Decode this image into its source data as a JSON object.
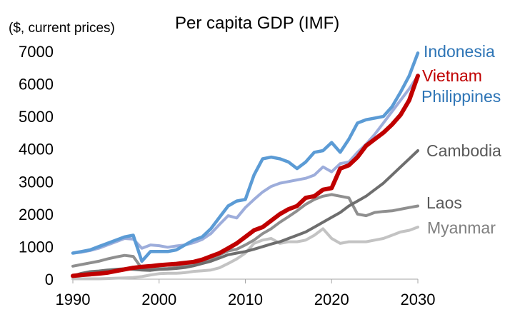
{
  "chart_data": {
    "type": "line",
    "title": "Per capita GDP (IMF)",
    "ylabel": "($, current prices)",
    "xlabel": "",
    "xlim": [
      1990,
      2030
    ],
    "ylim": [
      0,
      7000
    ],
    "xticks": [
      1990,
      2000,
      2010,
      2020,
      2030
    ],
    "yticks": [
      0,
      1000,
      2000,
      3000,
      4000,
      5000,
      6000,
      7000
    ],
    "x": [
      1990,
      1991,
      1992,
      1993,
      1994,
      1995,
      1996,
      1997,
      1998,
      1999,
      2000,
      2001,
      2002,
      2003,
      2004,
      2005,
      2006,
      2007,
      2008,
      2009,
      2010,
      2011,
      2012,
      2013,
      2014,
      2015,
      2016,
      2017,
      2018,
      2019,
      2020,
      2021,
      2022,
      2023,
      2024,
      2025,
      2026,
      2027,
      2028,
      2029,
      2030
    ],
    "series": [
      {
        "name": "Philippines",
        "color": "#9DADDB",
        "width": 4,
        "values": [
          800,
          830,
          880,
          950,
          1050,
          1150,
          1250,
          1230,
          950,
          1050,
          1030,
          980,
          1020,
          1050,
          1120,
          1220,
          1400,
          1680,
          1950,
          1880,
          2200,
          2450,
          2680,
          2850,
          2950,
          3000,
          3050,
          3100,
          3200,
          3450,
          3300,
          3550,
          3600,
          3900,
          4150,
          4450,
          4800,
          5150,
          5500,
          5850,
          6250
        ]
      },
      {
        "name": "Laos",
        "color": "#8F8F8F",
        "width": 4,
        "values": [
          400,
          450,
          500,
          550,
          620,
          680,
          730,
          700,
          330,
          300,
          320,
          330,
          360,
          400,
          450,
          520,
          620,
          750,
          870,
          920,
          1050,
          1200,
          1400,
          1550,
          1750,
          1920,
          2100,
          2300,
          2450,
          2550,
          2600,
          2550,
          2500,
          2000,
          1950,
          2050,
          2080,
          2100,
          2150,
          2200,
          2250
        ]
      },
      {
        "name": "Myanmar",
        "color": "#C3C3C3",
        "width": 4,
        "values": [
          10,
          10,
          10,
          10,
          20,
          30,
          40,
          50,
          80,
          130,
          170,
          180,
          180,
          200,
          240,
          260,
          280,
          350,
          480,
          620,
          800,
          1100,
          1200,
          1250,
          1100,
          1150,
          1150,
          1200,
          1350,
          1550,
          1250,
          1100,
          1150,
          1150,
          1150,
          1200,
          1250,
          1350,
          1450,
          1500,
          1600
        ]
      },
      {
        "name": "Cambodia",
        "color": "#6E6E6E",
        "width": 4,
        "values": [
          100,
          180,
          230,
          250,
          280,
          300,
          320,
          300,
          280,
          270,
          300,
          310,
          330,
          360,
          410,
          480,
          550,
          650,
          750,
          800,
          850,
          920,
          1000,
          1080,
          1150,
          1250,
          1350,
          1450,
          1600,
          1750,
          1900,
          2050,
          2250,
          2400,
          2550,
          2750,
          2950,
          3200,
          3450,
          3700,
          3950
        ]
      },
      {
        "name": "Indonesia",
        "color": "#5B9BD5",
        "width": 4.5,
        "values": [
          800,
          850,
          900,
          1000,
          1100,
          1200,
          1300,
          1350,
          550,
          850,
          850,
          850,
          900,
          1050,
          1200,
          1300,
          1550,
          1900,
          2250,
          2400,
          2450,
          3200,
          3700,
          3750,
          3700,
          3600,
          3400,
          3600,
          3900,
          3950,
          4200,
          3900,
          4300,
          4800,
          4900,
          4950,
          5000,
          5300,
          5750,
          6250,
          6950
        ]
      },
      {
        "name": "Vietnam",
        "color": "#C00000",
        "width": 6,
        "values": [
          100,
          130,
          150,
          170,
          200,
          250,
          300,
          350,
          380,
          400,
          430,
          450,
          470,
          500,
          530,
          600,
          700,
          800,
          950,
          1100,
          1300,
          1500,
          1600,
          1800,
          2000,
          2150,
          2250,
          2500,
          2550,
          2750,
          2800,
          3400,
          3500,
          3750,
          4100,
          4300,
          4500,
          4750,
          5050,
          5500,
          6250
        ]
      }
    ],
    "legend": [
      {
        "name": "Indonesia",
        "color": "#2E75B6"
      },
      {
        "name": "Vietnam",
        "color": "#C00000"
      },
      {
        "name": "Philippines",
        "color": "#2E75B6"
      },
      {
        "name": "Cambodia",
        "color": "#595959"
      },
      {
        "name": "Laos",
        "color": "#595959"
      },
      {
        "name": "Myanmar",
        "color": "#7F7F7F"
      }
    ],
    "legend_placement": "right"
  }
}
